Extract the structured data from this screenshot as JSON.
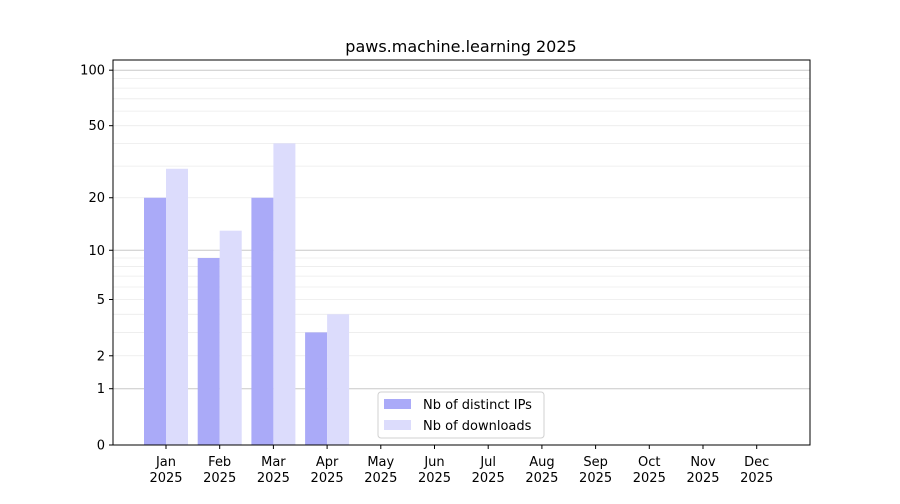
{
  "chart_data": {
    "type": "bar",
    "title": "paws.machine.learning 2025",
    "xlabel": "",
    "ylabel": "",
    "yscale": "symlog (log10(1+y))",
    "ylim": [
      0,
      110
    ],
    "yticks": [
      0,
      1,
      2,
      5,
      10,
      20,
      50,
      100
    ],
    "grid": true,
    "legend_position": "lower-center",
    "categories": [
      "Jan\n2025",
      "Feb\n2025",
      "Mar\n2025",
      "Apr\n2025",
      "May\n2025",
      "Jun\n2025",
      "Jul\n2025",
      "Aug\n2025",
      "Sep\n2025",
      "Oct\n2025",
      "Nov\n2025",
      "Dec\n2025"
    ],
    "series": [
      {
        "name": "Nb of distinct IPs",
        "color": "#aaaaf8",
        "values": [
          20,
          9,
          20,
          3,
          0,
          0,
          0,
          0,
          0,
          0,
          0,
          0
        ]
      },
      {
        "name": "Nb of downloads",
        "color": "#dcdcfc",
        "values": [
          29,
          13,
          40,
          4,
          0,
          0,
          0,
          0,
          0,
          0,
          0,
          0
        ]
      }
    ]
  }
}
